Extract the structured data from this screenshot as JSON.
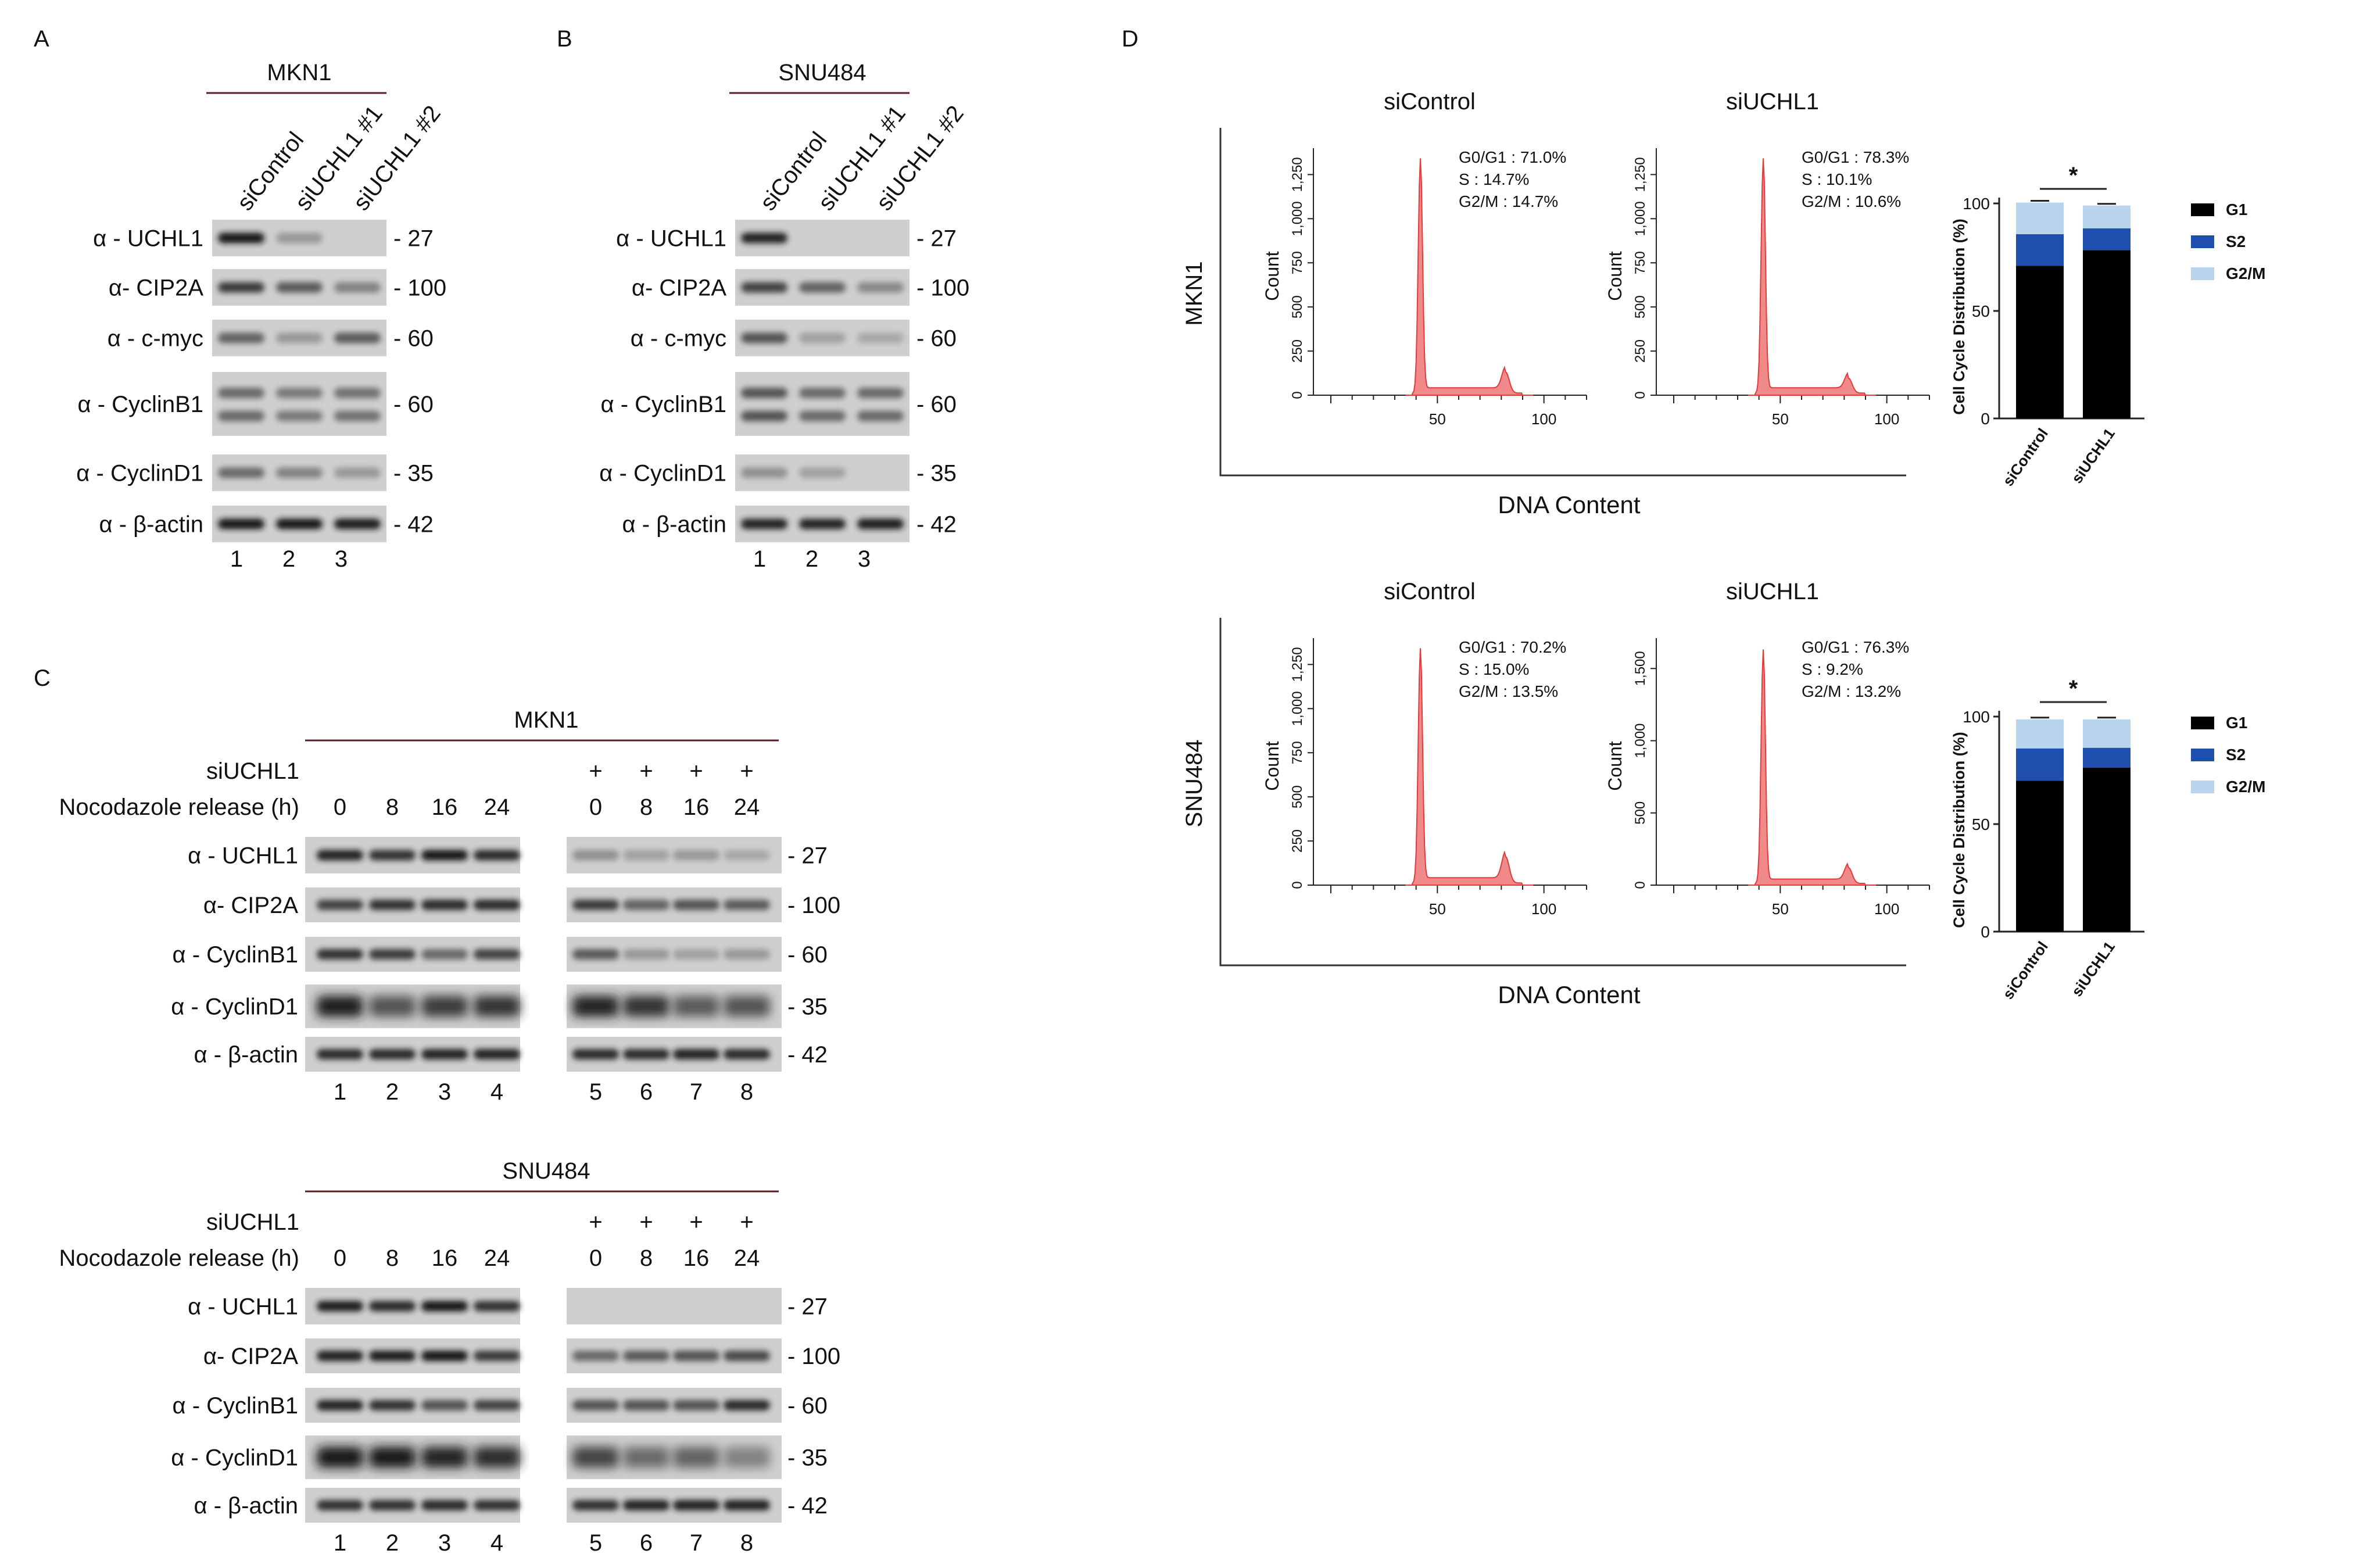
{
  "panel_labels": {
    "a": "A",
    "b": "B",
    "c": "C",
    "d": "D"
  },
  "panel_a": {
    "cell_line": "MKN1",
    "lanes": [
      "siControl",
      "siUCHL1 #1",
      "siUCHL1 #2"
    ],
    "lane_numbers": [
      "1",
      "2",
      "3"
    ],
    "rows": [
      {
        "label": "α - UCHL1",
        "mw": "- 27",
        "bands": [
          1.0,
          0.15,
          0.0
        ]
      },
      {
        "label": "α- CIP2A",
        "mw": "- 100",
        "bands": [
          0.75,
          0.55,
          0.3
        ]
      },
      {
        "label": "α - c-myc",
        "mw": "- 60",
        "bands": [
          0.5,
          0.15,
          0.55
        ]
      },
      {
        "label": "α - CyclinB1",
        "mw": "- 60",
        "bands": [
          0.45,
          0.35,
          0.4
        ]
      },
      {
        "label": "α - CyclinD1",
        "mw": "- 35",
        "bands": [
          0.45,
          0.3,
          0.15
        ]
      },
      {
        "label": "α - β-actin",
        "mw": "- 42",
        "bands": [
          1.0,
          1.0,
          0.95
        ]
      }
    ]
  },
  "panel_b": {
    "cell_line": "SNU484",
    "lanes": [
      "siControl",
      "siUCHL1 #1",
      "siUCHL1 #2"
    ],
    "lane_numbers": [
      "1",
      "2",
      "3"
    ],
    "rows": [
      {
        "label": "α - UCHL1",
        "mw": "- 27",
        "bands": [
          0.9,
          0.0,
          0.0
        ]
      },
      {
        "label": "α- CIP2A",
        "mw": "- 100",
        "bands": [
          0.7,
          0.5,
          0.25
        ]
      },
      {
        "label": "α - c-myc",
        "mw": "- 60",
        "bands": [
          0.6,
          0.1,
          0.05
        ]
      },
      {
        "label": "α - CyclinB1",
        "mw": "- 60",
        "bands": [
          0.6,
          0.45,
          0.45
        ]
      },
      {
        "label": "α - CyclinD1",
        "mw": "- 35",
        "bands": [
          0.2,
          0.1,
          0.0
        ]
      },
      {
        "label": "α - β-actin",
        "mw": "- 42",
        "bands": [
          0.9,
          0.9,
          0.95
        ]
      }
    ]
  },
  "panel_c": [
    {
      "cell_line": "MKN1",
      "row_label_siuchl1": "siUCHL1",
      "row_label_release": "Nocodazole release (h)",
      "plus_marks": [
        "+",
        "+",
        "+",
        "+"
      ],
      "timepoints_left": [
        "0",
        "8",
        "16",
        "24"
      ],
      "timepoints_right": [
        "0",
        "8",
        "16",
        "24"
      ],
      "lane_numbers": [
        "1",
        "2",
        "3",
        "4",
        "5",
        "6",
        "7",
        "8"
      ],
      "rows": [
        {
          "label": "α - UCHL1",
          "mw": "- 27",
          "bands": [
            0.9,
            0.8,
            1.0,
            0.85,
            0.2,
            0.1,
            0.15,
            0.05
          ]
        },
        {
          "label": "α- CIP2A",
          "mw": "- 100",
          "bands": [
            0.7,
            0.8,
            0.85,
            0.85,
            0.75,
            0.5,
            0.6,
            0.55
          ]
        },
        {
          "label": "α - CyclinB1",
          "mw": "- 60",
          "bands": [
            0.8,
            0.75,
            0.45,
            0.7,
            0.55,
            0.15,
            0.1,
            0.15
          ]
        },
        {
          "label": "α - CyclinD1",
          "mw": "- 35",
          "bands": [
            0.95,
            0.6,
            0.75,
            0.8,
            0.9,
            0.8,
            0.55,
            0.6
          ]
        },
        {
          "label": "α - β-actin",
          "mw": "- 42",
          "bands": [
            0.85,
            0.85,
            0.9,
            0.9,
            0.85,
            0.85,
            0.9,
            0.85
          ]
        }
      ]
    },
    {
      "cell_line": "SNU484",
      "row_label_siuchl1": "siUCHL1",
      "row_label_release": "Nocodazole release (h)",
      "plus_marks": [
        "+",
        "+",
        "+",
        "+"
      ],
      "timepoints_left": [
        "0",
        "8",
        "16",
        "24"
      ],
      "timepoints_right": [
        "0",
        "8",
        "16",
        "24"
      ],
      "lane_numbers": [
        "1",
        "2",
        "3",
        "4",
        "5",
        "6",
        "7",
        "8"
      ],
      "rows": [
        {
          "label": "α - UCHL1",
          "mw": "- 27",
          "bands": [
            0.95,
            0.85,
            1.0,
            0.8,
            0.0,
            0.0,
            0.0,
            0.0
          ]
        },
        {
          "label": "α- CIP2A",
          "mw": "- 100",
          "bands": [
            0.9,
            0.95,
            1.0,
            0.75,
            0.45,
            0.55,
            0.6,
            0.65
          ]
        },
        {
          "label": "α - CyclinB1",
          "mw": "- 60",
          "bands": [
            0.9,
            0.8,
            0.6,
            0.7,
            0.6,
            0.6,
            0.6,
            0.85
          ]
        },
        {
          "label": "α - CyclinD1",
          "mw": "- 35",
          "bands": [
            1.0,
            1.0,
            0.9,
            0.85,
            0.7,
            0.45,
            0.5,
            0.3
          ]
        },
        {
          "label": "α - β-actin",
          "mw": "- 42",
          "bands": [
            0.8,
            0.8,
            0.85,
            0.8,
            0.8,
            0.9,
            0.9,
            0.9
          ]
        }
      ]
    }
  ],
  "panel_d": {
    "histogram_rows": [
      {
        "cell_line": "MKN1",
        "xlabel": "DNA Content",
        "histograms": [
          {
            "title": "siControl",
            "ylabel": "Count",
            "yticks": [
              "0",
              "250",
              "500",
              "750",
              "1,000",
              "1,250"
            ],
            "ymax": 1350,
            "xticks": [
              "50",
              "100"
            ],
            "stats": [
              "G0/G1 : 71.0%",
              "S : 14.7%",
              "G2/M : 14.7%"
            ],
            "g1_peak": 1330,
            "g2_peak": 120
          },
          {
            "title": "siUCHL1",
            "ylabel": "Count",
            "yticks": [
              "0",
              "250",
              "500",
              "750",
              "1,000",
              "1,250"
            ],
            "ymax": 1350,
            "xticks": [
              "50",
              "100"
            ],
            "stats": [
              "G0/G1 : 78.3%",
              "S : 10.1%",
              "G2/M : 10.6%"
            ],
            "g1_peak": 1330,
            "g2_peak": 85
          }
        ]
      },
      {
        "cell_line": "SNU484",
        "xlabel": "DNA Content",
        "histograms": [
          {
            "title": "siControl",
            "ylabel": "Count",
            "yticks": [
              "0",
              "250",
              "500",
              "750",
              "1,000",
              "1,250"
            ],
            "ymax": 1350,
            "xticks": [
              "50",
              "100"
            ],
            "stats": [
              "G0/G1 : 70.2%",
              "S : 15.0%",
              "G2/M : 13.5%"
            ],
            "g1_peak": 1330,
            "g2_peak": 150
          },
          {
            "title": "siUCHL1",
            "ylabel": "Count",
            "yticks": [
              "0",
              "500",
              "1,000",
              "1,500"
            ],
            "ymax": 1650,
            "xticks": [
              "50",
              "100"
            ],
            "stats": [
              "G0/G1 : 76.3%",
              "S : 9.2%",
              "G2/M : 13.2%"
            ],
            "g1_peak": 1620,
            "g2_peak": 110
          }
        ]
      }
    ]
  },
  "chart_data": [
    {
      "type": "bar",
      "stacked": true,
      "categories": [
        "siControl",
        "siUCHL1"
      ],
      "series": [
        {
          "name": "G1",
          "values": [
            71.0,
            78.3
          ],
          "color": "#000000"
        },
        {
          "name": "S2",
          "values": [
            14.7,
            10.1
          ],
          "color": "#1f4fae"
        },
        {
          "name": "G2/M",
          "values": [
            14.7,
            10.6
          ],
          "color": "#b9d5ee"
        }
      ],
      "ylabel": "Cell Cycle Distribution (%)",
      "ylim": [
        0,
        100
      ],
      "yticks": [
        "0",
        "50",
        "100"
      ],
      "significance": "*",
      "legend": "right"
    },
    {
      "type": "bar",
      "stacked": true,
      "categories": [
        "siControl",
        "siUCHL1"
      ],
      "series": [
        {
          "name": "G1",
          "values": [
            70.2,
            76.3
          ],
          "color": "#000000"
        },
        {
          "name": "S2",
          "values": [
            15.0,
            9.2
          ],
          "color": "#1f4fae"
        },
        {
          "name": "G2/M",
          "values": [
            13.5,
            13.2
          ],
          "color": "#b9d5ee"
        }
      ],
      "ylabel": "Cell Cycle Distribution (%)",
      "ylim": [
        0,
        100
      ],
      "yticks": [
        "0",
        "50",
        "100"
      ],
      "significance": "*",
      "legend": "right"
    }
  ]
}
